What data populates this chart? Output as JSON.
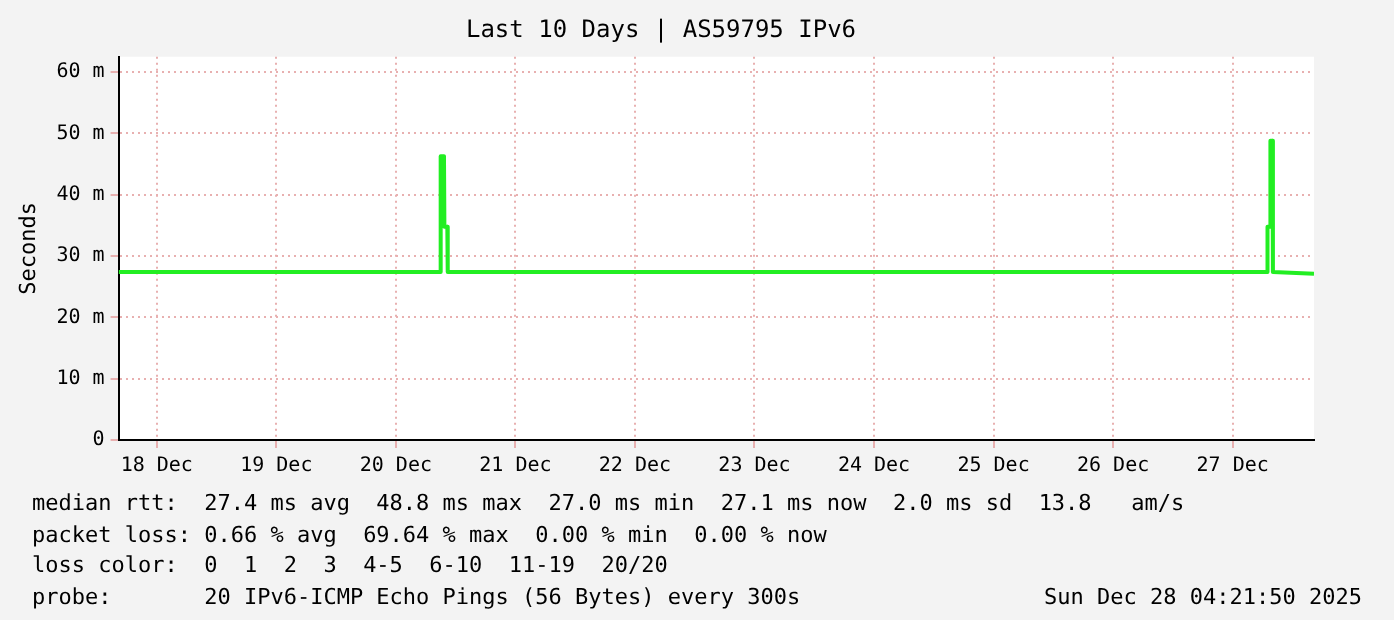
{
  "chart_data": {
    "type": "line",
    "title": "Last 10 Days | AS59795 IPv6",
    "ylabel": "Seconds",
    "x": [
      "2025-12-18T04:20",
      "2025-12-20T20:55",
      "2025-12-20T21:00",
      "2025-12-20T21:40",
      "2025-12-20T21:45",
      "2025-12-20T22:20",
      "2025-12-20T22:25",
      "2025-12-27T18:55",
      "2025-12-27T19:00",
      "2025-12-27T19:30",
      "2025-12-27T19:35",
      "2025-12-27T20:00",
      "2025-12-27T20:05",
      "2025-12-28T04:20"
    ],
    "series": [
      {
        "color": "#22ee22",
        "values": [
          27.4,
          27.4,
          46.3,
          46.3,
          34.8,
          34.8,
          27.4,
          27.4,
          34.8,
          34.8,
          48.8,
          48.8,
          27.4,
          27.1
        ]
      }
    ],
    "xlim": [
      "2025-12-18T04:20",
      "2025-12-28T04:20"
    ],
    "xticks": [
      {
        "value": "2025-12-18T12:00",
        "label": "18 Dec"
      },
      {
        "value": "2025-12-19T12:00",
        "label": "19 Dec"
      },
      {
        "value": "2025-12-20T12:00",
        "label": "20 Dec"
      },
      {
        "value": "2025-12-21T12:00",
        "label": "21 Dec"
      },
      {
        "value": "2025-12-22T12:00",
        "label": "22 Dec"
      },
      {
        "value": "2025-12-23T12:00",
        "label": "23 Dec"
      },
      {
        "value": "2025-12-24T12:00",
        "label": "24 Dec"
      },
      {
        "value": "2025-12-25T12:00",
        "label": "25 Dec"
      },
      {
        "value": "2025-12-26T12:00",
        "label": "26 Dec"
      },
      {
        "value": "2025-12-27T12:00",
        "label": "27 Dec"
      }
    ],
    "ylim": [
      0,
      62.5
    ],
    "yticks": [
      0,
      {
        "value": 10,
        "label": "10 m"
      },
      {
        "value": 20,
        "label": "20 m"
      },
      {
        "value": 30,
        "label": "30 m"
      },
      {
        "value": 40,
        "label": "40 m"
      },
      {
        "value": 50,
        "label": "50 m"
      },
      {
        "value": 60,
        "label": "60 m"
      }
    ],
    "grid": true,
    "marker": "none",
    "line_style": "solid",
    "annotations": [
      "median rtt:  27.4 ms avg  48.8 ms max  27.0 ms min  27.1 ms now  2.0 ms sd  13.8   am/s",
      "packet loss: 0.66 % avg  69.64 % max  0.00 % min  0.00 % now",
      "loss color:  0  1  2  3  4-5  6-10  11-19  20/20",
      "probe:       20 IPv6-ICMP Echo Pings (56 Bytes) every 300s",
      "Sun Dec 28 04:21:50 2025"
    ]
  }
}
